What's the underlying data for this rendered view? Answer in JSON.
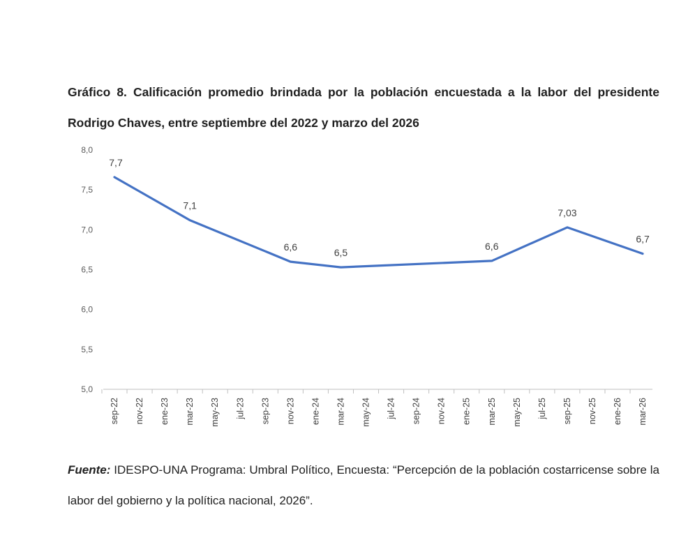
{
  "page": {
    "title": "Gráfico 8. Calificación promedio brindada por la población encuestada a la labor del presidente Rodrigo Chaves, entre septiembre del 2022 y marzo del 2026",
    "source_label": "Fuente:",
    "source_text": " IDESPO-UNA Programa: Umbral Político, Encuesta: “Percepción de la población costarricense sobre la labor del gobierno y la política nacional, 2026”."
  },
  "chart_data": {
    "type": "line",
    "title": "Gráfico 8. Calificación promedio brindada por la población encuestada a la labor del presidente Rodrigo Chaves, entre septiembre del 2022 y marzo del 2026",
    "xlabel": "",
    "ylabel": "",
    "ylim": [
      5.0,
      8.0
    ],
    "yticks": [
      "8,0",
      "7,5",
      "7,0",
      "6,5",
      "6,0",
      "5,5",
      "5,0"
    ],
    "ytick_values": [
      8.0,
      7.5,
      7.0,
      6.5,
      6.0,
      5.5,
      5.0
    ],
    "categories": [
      "sep-22",
      "nov-22",
      "ene-23",
      "mar-23",
      "may-23",
      "jul-23",
      "sep-23",
      "nov-23",
      "ene-24",
      "mar-24",
      "may-24",
      "jul-24",
      "sep-24",
      "nov-24",
      "ene-25",
      "mar-25",
      "may-25",
      "jul-25",
      "sep-25",
      "nov-25",
      "ene-26",
      "mar-26"
    ],
    "points": [
      {
        "category": "sep-22",
        "value": 7.66,
        "label": "7,7"
      },
      {
        "category": "mar-23",
        "value": 7.12,
        "label": "7,1"
      },
      {
        "category": "nov-23",
        "value": 6.6,
        "label": "6,6"
      },
      {
        "category": "mar-24",
        "value": 6.53,
        "label": "6,5"
      },
      {
        "category": "mar-25",
        "value": 6.61,
        "label": "6,6"
      },
      {
        "category": "sep-25",
        "value": 7.03,
        "label": "7,03"
      },
      {
        "category": "mar-26",
        "value": 6.7,
        "label": "6,7"
      }
    ],
    "color": "#4472C4",
    "grid": false,
    "legend": "none"
  }
}
